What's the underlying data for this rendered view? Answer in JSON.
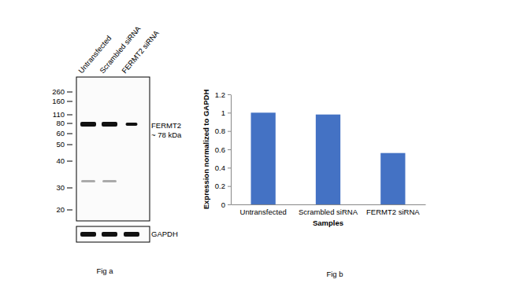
{
  "blot": {
    "lanes": [
      "Untransfected",
      "Scrambled siRNA",
      "FERMT2 siRNA"
    ],
    "markers": [
      260,
      160,
      110,
      80,
      60,
      50,
      40,
      30,
      20
    ],
    "target": "FERMT2",
    "size_label": "~ 78 kDa",
    "loading_control": "GAPDH",
    "caption": "Fig a"
  },
  "chart_data": {
    "type": "bar",
    "categories": [
      "Untransfected",
      "Scrambled siRNA",
      "FERMT2 siRNA"
    ],
    "values": [
      1.0,
      0.98,
      0.56
    ],
    "color": "#4472c4",
    "x_label": "Samples",
    "y_label": "Expression normalized to GAPDH",
    "ylim": [
      0,
      1.2
    ],
    "yticks": [
      0,
      0.2,
      0.4,
      0.6,
      0.8,
      1,
      1.2
    ],
    "grid": false,
    "annotations": [
      "Fig b"
    ]
  }
}
